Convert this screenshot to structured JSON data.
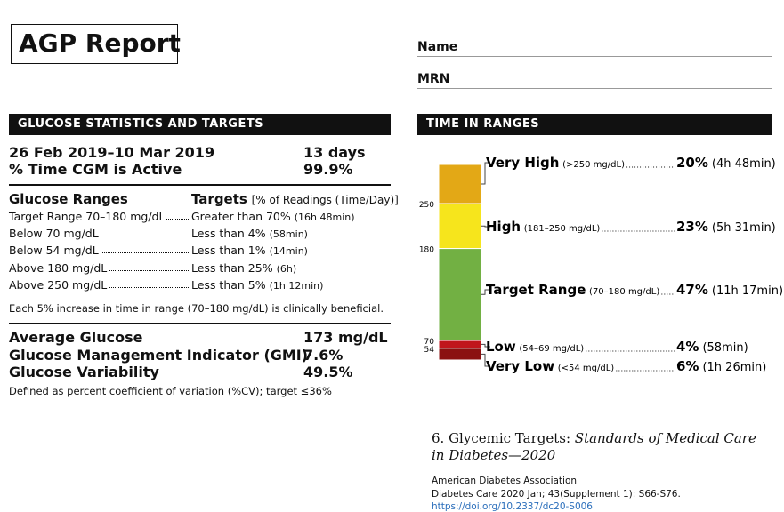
{
  "header": {
    "title": "AGP Report",
    "name_label": "Name",
    "mrn_label": "MRN"
  },
  "glucose_statistics": {
    "heading": "GLUCOSE STATISTICS AND TARGETS",
    "date_range": "26 Feb 2019–10 Mar 2019",
    "days": "13 days",
    "cgm_active_label": "% Time CGM is Active",
    "cgm_active_value": "99.9%",
    "ranges_heading": "Glucose Ranges",
    "targets_heading": "Targets",
    "targets_note": "[% of Readings (Time/Day)]",
    "targets": [
      {
        "range": "Target Range 70–180 mg/dL",
        "target": "Greater than 70%",
        "time": "(16h 48min)"
      },
      {
        "range": "Below 70 mg/dL",
        "target": "Less than 4%",
        "time": "(58min)"
      },
      {
        "range": "Below 54 mg/dL",
        "target": "Less than 1%",
        "time": "(14min)"
      },
      {
        "range": "Above 180 mg/dL",
        "target": "Less than 25%",
        "time": "(6h)"
      },
      {
        "range": "Above 250 mg/dL",
        "target": "Less than 5%",
        "time": "(1h 12min)"
      }
    ],
    "note": "Each 5% increase in time in range (70–180 mg/dL) is clinically beneficial.",
    "metrics": [
      {
        "label": "Average Glucose",
        "value": "173 mg/dL"
      },
      {
        "label": "Glucose Management Indicator (GMI)",
        "value": "7.6%"
      },
      {
        "label": "Glucose Variability",
        "value": "49.5%"
      }
    ],
    "footnote": "Defined as percent coefficient of variation (%CV); target ≤36%"
  },
  "time_in_ranges": {
    "heading": "TIME IN RANGES",
    "segments": [
      {
        "name": "Very High",
        "range": "(>250 mg/dL)",
        "value": 20,
        "value_label": "20%",
        "time": "(4h 48min)",
        "color": "#e3a816"
      },
      {
        "name": "High",
        "range": "(181–250 mg/dL)",
        "value": 23,
        "value_label": "23%",
        "time": "(5h 31min)",
        "color": "#f6e51c"
      },
      {
        "name": "Target Range",
        "range": "(70–180 mg/dL)",
        "value": 47,
        "value_label": "47%",
        "time": "(11h 17min)",
        "color": "#72b043"
      },
      {
        "name": "Low",
        "range": "(54–69 mg/dL)",
        "value": 4,
        "value_label": "4%",
        "time": "(58min)",
        "color": "#c0161c"
      },
      {
        "name": "Very Low",
        "range": "(<54 mg/dL)",
        "value": 6,
        "value_label": "6%",
        "time": "(1h 26min)",
        "color": "#8b1010"
      }
    ],
    "thresholds": [
      "250",
      "180",
      "70",
      "54"
    ]
  },
  "reference": {
    "title": "6. Glycemic Targets:",
    "subtitle": "Standards of Medical Care in Diabetes—2020",
    "org": "American Diabetes Association",
    "citation": "Diabetes Care 2020 Jan; 43(Supplement 1): S66-S76.",
    "doi": "https://doi.org/10.2337/dc20-S006"
  }
}
